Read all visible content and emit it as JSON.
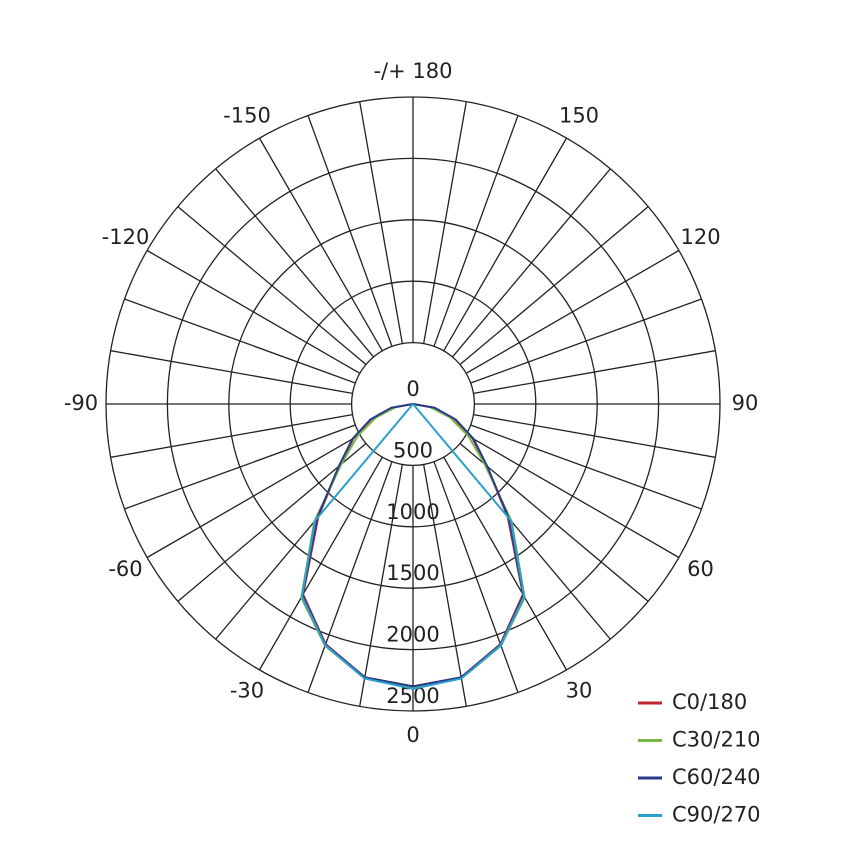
{
  "chart_data": {
    "type": "polar",
    "x": [
      -90,
      -80,
      -70,
      -60,
      -50,
      -40,
      -30,
      -20,
      -10,
      0,
      10,
      20,
      30,
      40,
      50,
      60,
      70,
      80,
      90
    ],
    "series": [
      {
        "name": "C0/180",
        "color": "#c0262d",
        "values": [
          0,
          170,
          360,
          560,
          780,
          1200,
          1790,
          2080,
          2260,
          2300,
          2260,
          2080,
          1790,
          1200,
          780,
          560,
          360,
          170,
          0
        ]
      },
      {
        "name": "C30/210",
        "color": "#7ab648",
        "values": [
          0,
          140,
          320,
          520,
          760,
          1250,
          1820,
          2095,
          2270,
          2310,
          2270,
          2095,
          1820,
          1250,
          760,
          520,
          320,
          140,
          0
        ]
      },
      {
        "name": "C60/240",
        "color": "#283a8a",
        "values": [
          0,
          180,
          370,
          570,
          790,
          1215,
          1800,
          2085,
          2260,
          2300,
          2260,
          2085,
          1800,
          1215,
          790,
          570,
          370,
          180,
          0
        ]
      },
      {
        "name": "C90/270",
        "color": "#2a9fd0",
        "values": [
          0,
          0,
          0,
          0,
          0,
          1240,
          1810,
          2090,
          2270,
          2320,
          2270,
          2090,
          1810,
          1240,
          0,
          0,
          0,
          0,
          0
        ]
      }
    ],
    "rlim": [
      0,
      2500
    ],
    "rticks": [
      0,
      500,
      1000,
      1500,
      2000,
      2500
    ],
    "xticks": [
      -150,
      -120,
      -90,
      -60,
      -30,
      0,
      30,
      60,
      90,
      120,
      150,
      {
        "value": 180,
        "label": "-/+ 180"
      }
    ],
    "xgrid_step": 10,
    "legend": "bottom-right"
  }
}
